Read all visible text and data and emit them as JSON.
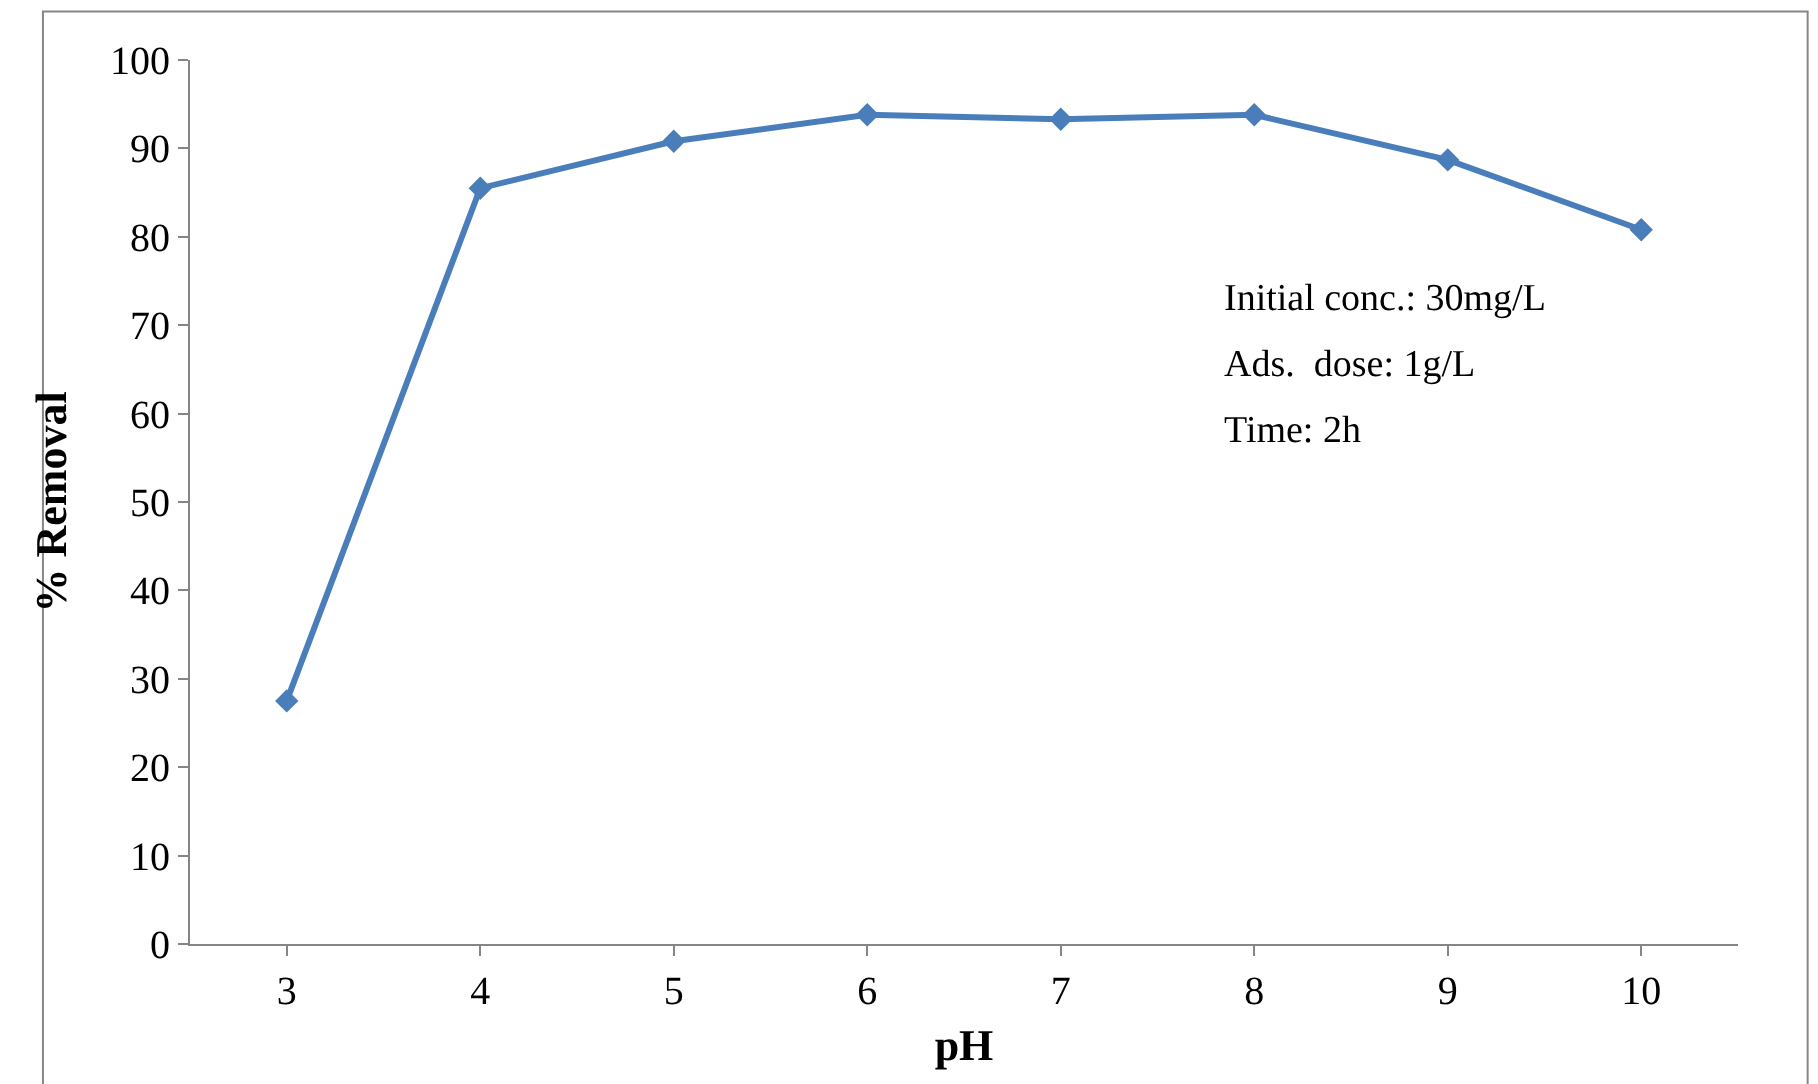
{
  "chart_data": {
    "type": "line",
    "xlabel": "pH",
    "ylabel": "% Removal",
    "categories": [
      "3",
      "4",
      "5",
      "6",
      "7",
      "8",
      "9",
      "10"
    ],
    "series": [
      {
        "color": "#4a7ebb",
        "values": [
          27.5,
          85.5,
          90.8,
          93.8,
          93.3,
          93.8,
          88.7,
          80.8
        ]
      }
    ],
    "ylim": [
      0,
      100
    ],
    "yticks": [
      0,
      10,
      20,
      30,
      40,
      50,
      60,
      70,
      80,
      90,
      100
    ],
    "marker": "diamond",
    "line_style": "solid",
    "annotations": [
      "Initial conc.: 30mg/L",
      "Ads.  dose: 1g/L",
      "Time: 2h"
    ]
  }
}
